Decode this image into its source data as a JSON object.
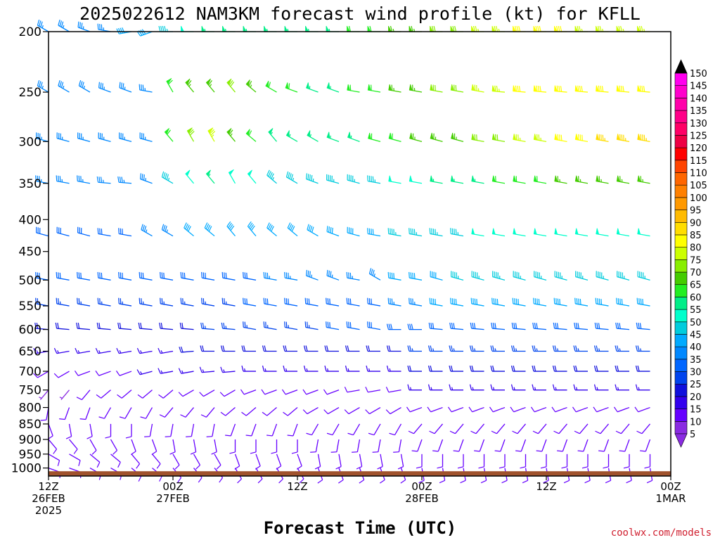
{
  "title": "2025022612 NAM3KM forecast wind profile (kt) for KFLL",
  "credit": "coolwx.com/models",
  "colors": {
    "ground": "#a0522d",
    "credit": "#d02030"
  },
  "chart_data": {
    "type": "wind-barb time-height",
    "xlabel": "Forecast Time (UTC)",
    "ylabel": "",
    "y_scale": "log-pressure",
    "ylim": [
      1030,
      200
    ],
    "xlim_hours": [
      0,
      60
    ],
    "x_ticks": [
      {
        "hour": 0,
        "lines": [
          "12Z",
          "26FEB",
          "2025"
        ]
      },
      {
        "hour": 12,
        "lines": [
          "00Z",
          "27FEB"
        ]
      },
      {
        "hour": 24,
        "lines": [
          "12Z"
        ]
      },
      {
        "hour": 36,
        "lines": [
          "00Z",
          "28FEB"
        ]
      },
      {
        "hour": 48,
        "lines": [
          "12Z"
        ]
      },
      {
        "hour": 60,
        "lines": [
          "00Z",
          "1MAR"
        ]
      }
    ],
    "y_ticks": [
      200,
      250,
      300,
      350,
      400,
      450,
      500,
      550,
      600,
      650,
      700,
      750,
      800,
      850,
      900,
      950,
      1000
    ],
    "colorbar": {
      "label_unit": "kt",
      "levels": [
        5,
        10,
        15,
        20,
        25,
        30,
        35,
        40,
        45,
        50,
        55,
        60,
        65,
        70,
        75,
        80,
        85,
        90,
        95,
        100,
        105,
        110,
        115,
        120,
        125,
        130,
        135,
        140,
        145,
        150
      ],
      "colors": [
        "#8a2be2",
        "#6600ff",
        "#3300ee",
        "#1010dd",
        "#0044ee",
        "#0066ff",
        "#0088ff",
        "#00aaff",
        "#00ccdd",
        "#00ffcc",
        "#00ee88",
        "#22ee22",
        "#44cc00",
        "#88ee00",
        "#ccff00",
        "#ffff00",
        "#ffdd00",
        "#ffbb00",
        "#ff9900",
        "#ff8000",
        "#ff6600",
        "#ff4400",
        "#ff0000",
        "#ee0044",
        "#ff0066",
        "#ff0088",
        "#ff00aa",
        "#ff00cc",
        "#ff00ee",
        "#ee00ff"
      ]
    },
    "series": [
      {
        "level": 200,
        "dir": [
          300,
          300,
          290,
          280,
          260,
          250,
          270,
          270,
          270,
          270,
          270,
          270,
          270,
          270,
          270,
          270,
          270,
          270,
          270,
          270,
          270,
          270,
          270,
          270,
          270,
          270,
          270,
          270,
          270,
          270,
          270
        ],
        "spd": [
          35,
          35,
          35,
          35,
          40,
          40,
          45,
          50,
          55,
          55,
          55,
          55,
          55,
          55,
          55,
          60,
          60,
          65,
          65,
          70,
          70,
          75,
          75,
          80,
          80,
          80,
          75,
          75,
          75,
          75,
          70
        ]
      },
      {
        "level": 250,
        "dir": [
          300,
          300,
          300,
          290,
          290,
          280,
          330,
          320,
          320,
          320,
          310,
          300,
          290,
          290,
          290,
          280,
          280,
          280,
          280,
          280,
          280,
          280,
          275,
          275,
          275,
          275,
          275,
          275,
          275,
          275,
          275
        ],
        "spd": [
          35,
          35,
          35,
          35,
          35,
          35,
          60,
          65,
          65,
          70,
          65,
          60,
          60,
          55,
          55,
          60,
          60,
          65,
          65,
          70,
          70,
          75,
          75,
          80,
          80,
          80,
          80,
          80,
          80,
          80,
          80
        ]
      },
      {
        "level": 300,
        "dir": [
          285,
          285,
          285,
          285,
          285,
          285,
          320,
          330,
          330,
          320,
          310,
          320,
          300,
          300,
          290,
          290,
          285,
          285,
          285,
          285,
          285,
          280,
          280,
          280,
          280,
          280,
          280,
          280,
          280,
          280,
          280
        ],
        "spd": [
          35,
          35,
          35,
          35,
          35,
          35,
          60,
          70,
          75,
          65,
          60,
          55,
          55,
          55,
          55,
          55,
          60,
          60,
          65,
          65,
          65,
          70,
          70,
          75,
          75,
          80,
          80,
          85,
          85,
          85,
          85
        ]
      },
      {
        "level": 350,
        "dir": [
          280,
          280,
          280,
          275,
          275,
          290,
          300,
          320,
          320,
          330,
          320,
          310,
          300,
          290,
          285,
          285,
          280,
          280,
          280,
          280,
          280,
          280,
          280,
          280,
          280,
          280,
          280,
          280,
          280,
          280,
          280
        ],
        "spd": [
          35,
          35,
          35,
          35,
          35,
          35,
          45,
          50,
          55,
          50,
          50,
          45,
          45,
          45,
          45,
          45,
          45,
          50,
          50,
          55,
          55,
          55,
          60,
          60,
          60,
          65,
          65,
          65,
          65,
          65,
          65
        ]
      },
      {
        "level": 425,
        "dir": [
          285,
          285,
          285,
          280,
          280,
          300,
          300,
          310,
          310,
          320,
          320,
          310,
          310,
          300,
          290,
          285,
          280,
          280,
          280,
          280,
          280,
          280,
          280,
          280,
          280,
          280,
          280,
          280,
          280,
          280,
          280
        ],
        "spd": [
          30,
          30,
          30,
          30,
          30,
          35,
          35,
          40,
          40,
          40,
          40,
          40,
          40,
          40,
          40,
          40,
          40,
          45,
          45,
          45,
          45,
          50,
          50,
          50,
          50,
          50,
          50,
          50,
          50,
          50,
          50
        ]
      },
      {
        "level": 500,
        "dir": [
          280,
          280,
          280,
          280,
          280,
          280,
          280,
          280,
          280,
          280,
          280,
          280,
          280,
          290,
          290,
          280,
          300,
          280,
          280,
          285,
          285,
          285,
          285,
          285,
          285,
          285,
          285,
          285,
          285,
          285,
          285
        ],
        "spd": [
          30,
          30,
          30,
          30,
          30,
          30,
          30,
          30,
          30,
          30,
          30,
          35,
          35,
          35,
          35,
          35,
          35,
          40,
          40,
          40,
          45,
          45,
          45,
          45,
          45,
          45,
          45,
          45,
          45,
          45,
          45
        ]
      },
      {
        "level": 550,
        "dir": [
          280,
          280,
          280,
          280,
          280,
          280,
          280,
          280,
          280,
          280,
          280,
          280,
          280,
          280,
          280,
          280,
          280,
          280,
          280,
          280,
          280,
          280,
          280,
          280,
          280,
          280,
          280,
          280,
          280,
          280,
          280
        ],
        "spd": [
          25,
          25,
          25,
          25,
          25,
          25,
          25,
          25,
          25,
          25,
          30,
          30,
          30,
          30,
          30,
          30,
          30,
          35,
          35,
          40,
          40,
          40,
          40,
          40,
          40,
          40,
          40,
          40,
          40,
          40,
          40
        ]
      },
      {
        "level": 600,
        "dir": [
          275,
          275,
          275,
          275,
          275,
          275,
          275,
          275,
          275,
          275,
          280,
          280,
          280,
          280,
          280,
          280,
          280,
          270,
          270,
          275,
          275,
          275,
          275,
          275,
          275,
          275,
          275,
          275,
          275,
          275,
          275
        ],
        "spd": [
          20,
          20,
          20,
          20,
          20,
          20,
          20,
          20,
          25,
          25,
          25,
          25,
          25,
          25,
          30,
          30,
          30,
          30,
          30,
          30,
          30,
          30,
          30,
          30,
          30,
          30,
          30,
          30,
          30,
          30,
          30
        ]
      },
      {
        "level": 650,
        "dir": [
          260,
          260,
          260,
          260,
          260,
          260,
          260,
          265,
          270,
          270,
          270,
          270,
          270,
          270,
          270,
          270,
          270,
          270,
          270,
          270,
          270,
          270,
          270,
          270,
          270,
          270,
          270,
          270,
          270,
          270,
          270
        ],
        "spd": [
          15,
          15,
          15,
          15,
          15,
          15,
          15,
          20,
          20,
          20,
          20,
          20,
          20,
          20,
          20,
          20,
          20,
          20,
          25,
          25,
          25,
          25,
          25,
          25,
          25,
          25,
          25,
          25,
          25,
          25,
          25
        ]
      },
      {
        "level": 700,
        "dir": [
          240,
          240,
          250,
          250,
          250,
          255,
          260,
          260,
          265,
          265,
          270,
          270,
          270,
          270,
          270,
          270,
          270,
          270,
          270,
          270,
          270,
          270,
          270,
          270,
          270,
          270,
          270,
          270,
          270,
          270,
          270
        ],
        "spd": [
          10,
          10,
          10,
          10,
          10,
          15,
          15,
          15,
          15,
          15,
          15,
          15,
          15,
          15,
          15,
          15,
          15,
          15,
          20,
          20,
          20,
          20,
          20,
          20,
          20,
          20,
          20,
          20,
          20,
          20,
          20
        ]
      },
      {
        "level": 750,
        "dir": [
          220,
          220,
          220,
          230,
          230,
          230,
          230,
          240,
          240,
          240,
          250,
          250,
          250,
          250,
          250,
          260,
          260,
          260,
          270,
          270,
          270,
          270,
          270,
          270,
          270,
          270,
          270,
          270,
          270,
          270,
          270
        ],
        "spd": [
          5,
          5,
          10,
          10,
          10,
          10,
          10,
          10,
          10,
          10,
          10,
          10,
          10,
          10,
          10,
          10,
          10,
          10,
          15,
          15,
          15,
          15,
          15,
          15,
          15,
          15,
          15,
          15,
          15,
          15,
          15
        ]
      },
      {
        "level": 800,
        "dir": [
          190,
          200,
          200,
          210,
          210,
          210,
          220,
          220,
          220,
          230,
          230,
          230,
          230,
          240,
          240,
          240,
          240,
          240,
          250,
          250,
          250,
          250,
          250,
          250,
          250,
          250,
          250,
          250,
          250,
          250,
          250
        ],
        "spd": [
          10,
          10,
          10,
          10,
          10,
          10,
          10,
          10,
          10,
          10,
          10,
          10,
          10,
          10,
          10,
          10,
          10,
          10,
          10,
          10,
          10,
          10,
          10,
          10,
          10,
          10,
          10,
          10,
          10,
          10,
          10
        ]
      },
      {
        "level": 850,
        "dir": [
          160,
          170,
          170,
          180,
          180,
          190,
          190,
          190,
          190,
          200,
          200,
          200,
          200,
          210,
          210,
          210,
          210,
          210,
          220,
          220,
          220,
          220,
          220,
          220,
          220,
          220,
          220,
          220,
          220,
          220,
          220
        ],
        "spd": [
          10,
          10,
          10,
          10,
          10,
          10,
          10,
          10,
          10,
          10,
          10,
          10,
          10,
          10,
          10,
          10,
          10,
          10,
          10,
          10,
          10,
          10,
          10,
          10,
          10,
          10,
          10,
          10,
          10,
          10,
          10
        ]
      },
      {
        "level": 900,
        "dir": [
          140,
          140,
          150,
          150,
          160,
          160,
          170,
          170,
          170,
          180,
          180,
          180,
          180,
          190,
          190,
          190,
          190,
          190,
          200,
          200,
          200,
          200,
          200,
          200,
          200,
          200,
          200,
          200,
          200,
          200,
          200
        ],
        "spd": [
          10,
          10,
          10,
          10,
          10,
          10,
          10,
          10,
          10,
          10,
          10,
          10,
          10,
          10,
          10,
          10,
          10,
          10,
          10,
          10,
          10,
          10,
          10,
          10,
          10,
          10,
          10,
          10,
          10,
          10,
          10
        ]
      },
      {
        "level": 950,
        "dir": [
          120,
          120,
          130,
          130,
          140,
          140,
          150,
          150,
          150,
          160,
          160,
          160,
          160,
          170,
          170,
          170,
          170,
          170,
          180,
          180,
          180,
          180,
          180,
          180,
          180,
          180,
          180,
          180,
          180,
          180,
          180
        ],
        "spd": [
          10,
          10,
          10,
          10,
          10,
          10,
          10,
          10,
          10,
          10,
          10,
          10,
          10,
          10,
          10,
          10,
          10,
          10,
          10,
          10,
          10,
          10,
          10,
          10,
          10,
          10,
          10,
          10,
          10,
          10,
          10
        ]
      },
      {
        "level": 1000,
        "dir": [
          110,
          110,
          120,
          120,
          130,
          130,
          140,
          140,
          140,
          150,
          150,
          150,
          150,
          160,
          160,
          160,
          160,
          160,
          170,
          170,
          170,
          170,
          170,
          170,
          170,
          170,
          170,
          170,
          170,
          170,
          170
        ],
        "spd": [
          10,
          10,
          10,
          10,
          10,
          10,
          10,
          10,
          10,
          10,
          10,
          10,
          10,
          10,
          10,
          10,
          10,
          10,
          10,
          10,
          10,
          10,
          10,
          10,
          10,
          10,
          10,
          10,
          10,
          10,
          10
        ]
      }
    ],
    "x_hours_step": 2,
    "ground_top_hpa": 1012,
    "grid": false,
    "legend": "colorbar-right"
  }
}
